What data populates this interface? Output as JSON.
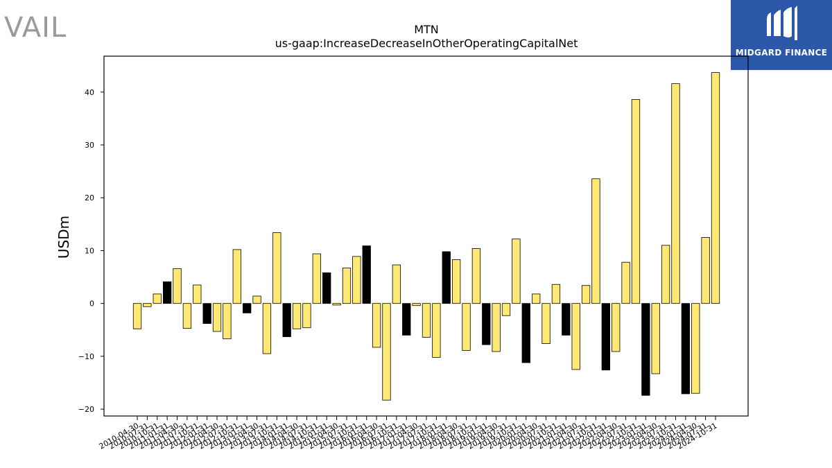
{
  "header": {
    "logo_left_text": "VAIL",
    "logo_right_text": "MIDGARD FINANCE"
  },
  "colors": {
    "positive_bar": "#ffe873",
    "highlight_bar": "#000000",
    "edge": "#000000"
  },
  "chart_data": {
    "type": "bar",
    "title": "MTN",
    "subtitle": "us-gaap:IncreaseDecreaseInOtherOperatingCapitalNet",
    "ylabel": "USDm",
    "xlabel": "",
    "ylim": [
      -21.3,
      46.8
    ],
    "yticks": [
      -20,
      -10,
      0,
      10,
      20,
      30,
      40
    ],
    "grid": false,
    "categories": [
      "2010-04-30",
      "2010-07-31",
      "2010-10-31",
      "2011-01-31",
      "2011-04-30",
      "2011-07-31",
      "2011-10-31",
      "2012-01-31",
      "2012-04-30",
      "2012-07-31",
      "2012-10-31",
      "2013-01-31",
      "2013-04-30",
      "2013-07-31",
      "2013-10-31",
      "2014-01-31",
      "2014-04-30",
      "2014-07-31",
      "2014-10-31",
      "2015-01-31",
      "2015-04-30",
      "2015-07-31",
      "2015-10-31",
      "2016-01-31",
      "2016-04-30",
      "2016-07-31",
      "2016-10-31",
      "2017-01-31",
      "2017-04-30",
      "2017-07-31",
      "2017-10-31",
      "2018-01-31",
      "2018-04-30",
      "2018-07-31",
      "2018-10-31",
      "2019-01-31",
      "2019-04-30",
      "2019-07-31",
      "2019-10-31",
      "2020-01-31",
      "2020-04-30",
      "2020-07-31",
      "2020-10-31",
      "2021-01-31",
      "2021-04-30",
      "2021-07-31",
      "2021-10-31",
      "2022-01-31",
      "2022-04-30",
      "2022-07-31",
      "2022-10-31",
      "2023-01-31",
      "2023-04-30",
      "2023-07-31",
      "2023-10-31",
      "2024-01-31",
      "2024-04-30",
      "2024-07-31",
      "2024-10-31"
    ],
    "values": [
      -4.8,
      -0.6,
      1.8,
      4.1,
      6.6,
      -4.7,
      3.5,
      -3.8,
      -5.3,
      -6.7,
      10.2,
      -1.8,
      1.4,
      -9.5,
      13.4,
      -6.3,
      -4.8,
      -4.6,
      9.4,
      5.8,
      -0.3,
      6.7,
      8.9,
      10.9,
      -8.3,
      -18.3,
      7.3,
      -6.0,
      -0.4,
      -6.4,
      -10.2,
      9.8,
      8.3,
      -8.9,
      10.4,
      -7.8,
      -9.1,
      -2.3,
      12.2,
      -11.2,
      1.8,
      -7.6,
      3.6,
      -6.0,
      -12.5,
      3.4,
      23.6,
      -12.6,
      -9.1,
      7.8,
      38.6,
      -17.4,
      -13.3,
      11.0,
      41.6,
      -17.1,
      -17.0,
      12.5,
      43.7
    ],
    "highlight": [
      3,
      7,
      11,
      15,
      19,
      23,
      27,
      31,
      35,
      39,
      43,
      47,
      51,
      55
    ]
  }
}
